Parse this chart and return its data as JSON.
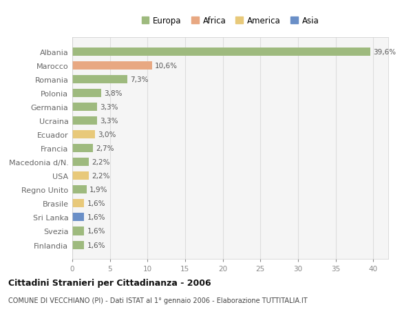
{
  "countries": [
    "Albania",
    "Marocco",
    "Romania",
    "Polonia",
    "Germania",
    "Ucraina",
    "Ecuador",
    "Francia",
    "Macedonia d/N.",
    "USA",
    "Regno Unito",
    "Brasile",
    "Sri Lanka",
    "Svezia",
    "Finlandia"
  ],
  "values": [
    39.6,
    10.6,
    7.3,
    3.8,
    3.3,
    3.3,
    3.0,
    2.7,
    2.2,
    2.2,
    1.9,
    1.6,
    1.6,
    1.6,
    1.6
  ],
  "labels": [
    "39,6%",
    "10,6%",
    "7,3%",
    "3,8%",
    "3,3%",
    "3,3%",
    "3,0%",
    "2,7%",
    "2,2%",
    "2,2%",
    "1,9%",
    "1,6%",
    "1,6%",
    "1,6%",
    "1,6%"
  ],
  "colors": [
    "#9eba7e",
    "#e8a882",
    "#9eba7e",
    "#9eba7e",
    "#9eba7e",
    "#9eba7e",
    "#e8c97a",
    "#9eba7e",
    "#9eba7e",
    "#e8c97a",
    "#9eba7e",
    "#e8c97a",
    "#6a8fc7",
    "#9eba7e",
    "#9eba7e"
  ],
  "legend_labels": [
    "Europa",
    "Africa",
    "America",
    "Asia"
  ],
  "legend_colors": [
    "#9eba7e",
    "#e8a882",
    "#e8c97a",
    "#6a8fc7"
  ],
  "xlim": [
    0,
    42
  ],
  "xticks": [
    0,
    5,
    10,
    15,
    20,
    25,
    30,
    35,
    40
  ],
  "title": "Cittadini Stranieri per Cittadinanza - 2006",
  "subtitle": "COMUNE DI VECCHIANO (PI) - Dati ISTAT al 1° gennaio 2006 - Elaborazione TUTTITALIA.IT",
  "background_color": "#ffffff",
  "plot_bg_color": "#f5f5f5",
  "grid_color": "#dddddd",
  "bar_height": 0.6
}
